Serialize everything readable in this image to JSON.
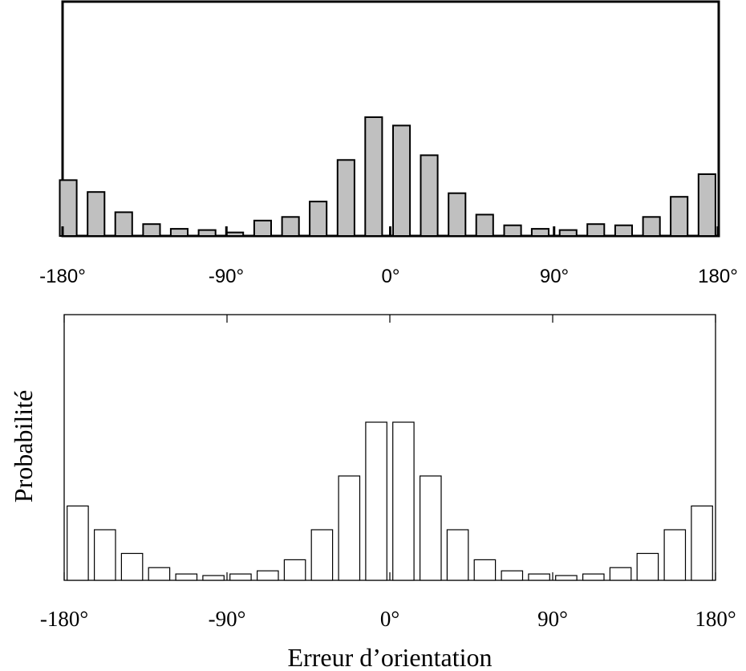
{
  "chart_data": [
    {
      "type": "bar",
      "title": "",
      "xlabel": "",
      "ylabel": "",
      "x_unit": "degrees",
      "xlim": [
        -185,
        185
      ],
      "ylim": [
        0,
        1
      ],
      "grid": false,
      "bar_color": "#c0c0c0",
      "edge_color": "#000000",
      "xticks": [
        -180,
        -90,
        0,
        90,
        180
      ],
      "xtick_labels": [
        "-180°",
        "-90°",
        "0°",
        "90°",
        "180°"
      ],
      "x": [
        -176.9,
        -161.6,
        -146.4,
        -131.1,
        -115.9,
        -100.6,
        -85.4,
        -70.1,
        -54.8,
        -39.6,
        -24.3,
        -9.1,
        6.2,
        21.4,
        36.7,
        51.9,
        67.2,
        82.4,
        97.7,
        112.9,
        128.2,
        143.5,
        158.7,
        174.0
      ],
      "series": [
        {
          "values": [
            0.47,
            0.37,
            0.2,
            0.1,
            0.06,
            0.05,
            0.03,
            0.13,
            0.16,
            0.29,
            0.64,
            1.0,
            0.93,
            0.68,
            0.36,
            0.18,
            0.09,
            0.06,
            0.05,
            0.1,
            0.09,
            0.16,
            0.33,
            0.52
          ]
        }
      ]
    },
    {
      "type": "bar",
      "title": "",
      "xlabel": "Erreur d’orientation",
      "ylabel": "Probabilité",
      "x_unit": "degrees",
      "xlim": [
        -185,
        185
      ],
      "ylim": [
        0,
        1
      ],
      "grid": false,
      "bar_color": "#ffffff",
      "edge_color": "#000000",
      "xticks": [
        -180,
        -90,
        0,
        90,
        180
      ],
      "xtick_labels": [
        "-180°",
        "-90°",
        "0°",
        "90°",
        "180°"
      ],
      "x": [
        -172.5,
        -157.5,
        -142.5,
        -127.5,
        -112.5,
        -97.5,
        -82.5,
        -67.5,
        -52.5,
        -37.5,
        -22.5,
        -7.5,
        7.5,
        22.5,
        37.5,
        52.5,
        67.5,
        82.5,
        97.5,
        112.5,
        127.5,
        142.5,
        157.5,
        172.5
      ],
      "series": [
        {
          "values": [
            0.47,
            0.32,
            0.17,
            0.08,
            0.04,
            0.03,
            0.04,
            0.06,
            0.13,
            0.32,
            0.66,
            1.0,
            1.0,
            0.66,
            0.32,
            0.13,
            0.06,
            0.04,
            0.03,
            0.04,
            0.08,
            0.17,
            0.32,
            0.47
          ]
        }
      ]
    }
  ]
}
